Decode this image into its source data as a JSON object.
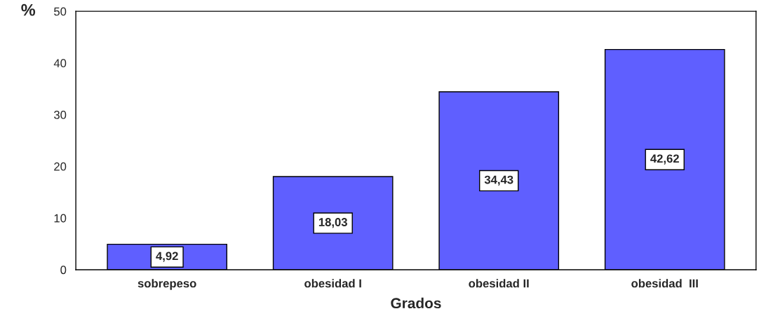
{
  "chart_data": {
    "type": "bar",
    "xlabel": "Grados",
    "ylabel": "%",
    "categories": [
      "sobrepeso",
      "obesidad I",
      "obesidad II",
      "obesidad  III"
    ],
    "values": [
      4.92,
      18.03,
      34.43,
      42.62
    ],
    "value_labels": [
      "4,92",
      "18,03",
      "34,43",
      "42,62"
    ],
    "color": "#5f5fff",
    "ylim": [
      0,
      50
    ],
    "yticks": [
      0,
      10,
      20,
      30,
      40,
      50
    ],
    "grid": false
  }
}
